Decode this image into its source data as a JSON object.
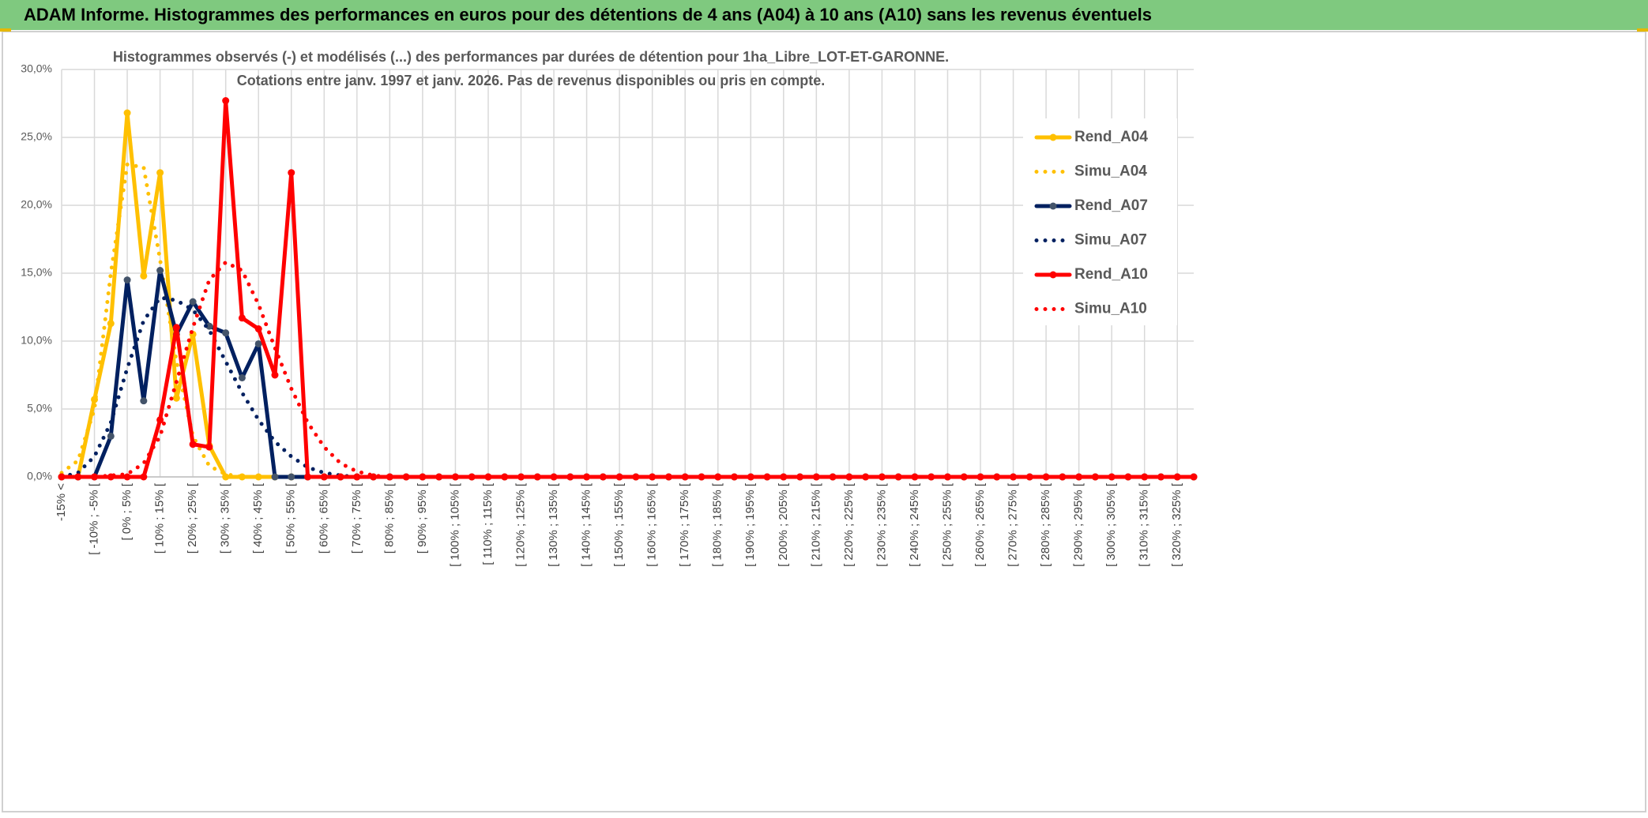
{
  "header": {
    "title": "ADAM Informe. Histogrammes des performances en euros pour des détentions de 4 ans (A04) à 10 ans (A10) sans les revenus éventuels"
  },
  "chart_data": {
    "type": "line",
    "title": [
      "Histogrammes observés (-) et modélisés (...) des performances par durées de détention pour 1ha_Libre_LOT-ET-GARONNE.",
      "Cotations entre janv. 1997 et janv. 2026. Pas de revenus disponibles ou pris en compte."
    ],
    "categories": [
      "-15% <",
      null,
      "[ -10% ; -5% [",
      null,
      "[ 0% ; 5% [",
      null,
      "[ 10% ; 15% [",
      null,
      "[ 20% ; 25% [",
      null,
      "[ 30% ; 35% [",
      null,
      "[ 40% ; 45% [",
      null,
      "[ 50% ; 55% [",
      null,
      "[ 60% ; 65% [",
      null,
      "[ 70% ; 75% [",
      null,
      "[ 80% ; 85% [",
      null,
      "[ 90% ; 95% [",
      null,
      "[ 100% ; 105% [",
      null,
      "[ 110% ; 115% [",
      null,
      "[ 120% ; 125% [",
      null,
      "[ 130% ; 135% [",
      null,
      "[ 140% ; 145% [",
      null,
      "[ 150% ; 155% [",
      null,
      "[ 160% ; 165% [",
      null,
      "[ 170% ; 175% [",
      null,
      "[ 180% ; 185% [",
      null,
      "[ 190% ; 195% [",
      null,
      "[ 200% ; 205% [",
      null,
      "[ 210% ; 215% [",
      null,
      "[ 220% ; 225% [",
      null,
      "[ 230% ; 235% [",
      null,
      "[ 240% ; 245% [",
      null,
      "[ 250% ; 255% [",
      null,
      "[ 260% ; 265% [",
      null,
      "[ 270% ; 275% [",
      null,
      "[ 280% ; 285% [",
      null,
      "[ 290% ; 295% [",
      null,
      "[ 300% ; 305% [",
      null,
      "[ 310% ; 315% [",
      null,
      "[ 320% ; 325% [",
      null
    ],
    "series": [
      {
        "name": "Rend_A04",
        "color": "#ffc000",
        "style": "solid",
        "marker": true,
        "values": [
          0,
          0,
          5.7,
          11.3,
          26.8,
          14.8,
          22.4,
          5.8,
          10.5,
          2.3,
          0,
          0,
          0,
          0,
          0,
          0,
          0,
          0,
          0,
          0,
          0,
          0,
          0,
          0,
          0,
          0,
          0,
          0,
          0,
          0,
          0,
          0,
          0,
          0,
          0,
          0,
          0,
          0,
          0,
          0,
          0,
          0,
          0,
          0,
          0,
          0,
          0,
          0,
          0,
          0,
          0,
          0,
          0,
          0,
          0,
          0,
          0,
          0,
          0,
          0,
          0,
          0,
          0,
          0,
          0,
          0,
          0,
          0,
          0,
          0
        ]
      },
      {
        "name": "Simu_A04",
        "color": "#ffc000",
        "style": "dotted",
        "marker": false,
        "values": [
          0.3,
          1.2,
          5,
          15,
          23,
          22.8,
          16,
          8.5,
          3,
          0.8,
          0.2,
          0,
          0,
          0,
          0,
          0,
          0,
          0,
          0,
          0,
          0,
          0,
          0,
          0,
          0,
          0,
          0,
          0,
          0,
          0,
          0,
          0,
          0,
          0,
          0,
          0,
          0,
          0,
          0,
          0,
          0,
          0,
          0,
          0,
          0,
          0,
          0,
          0,
          0,
          0,
          0,
          0,
          0,
          0,
          0,
          0,
          0,
          0,
          0,
          0,
          0,
          0,
          0,
          0,
          0,
          0,
          0,
          0,
          0,
          0
        ]
      },
      {
        "name": "Rend_A07",
        "color": "#002060",
        "style": "solid",
        "marker": true,
        "values": [
          0,
          0,
          0,
          3,
          14.5,
          5.6,
          15.2,
          10.5,
          12.9,
          11.1,
          10.6,
          7.3,
          9.8,
          0,
          0,
          0,
          0,
          0,
          0,
          0,
          0,
          0,
          0,
          0,
          0,
          0,
          0,
          0,
          0,
          0,
          0,
          0,
          0,
          0,
          0,
          0,
          0,
          0,
          0,
          0,
          0,
          0,
          0,
          0,
          0,
          0,
          0,
          0,
          0,
          0,
          0,
          0,
          0,
          0,
          0,
          0,
          0,
          0,
          0,
          0,
          0,
          0,
          0,
          0,
          0,
          0,
          0,
          0,
          0,
          0
        ]
      },
      {
        "name": "Simu_A07",
        "color": "#002060",
        "style": "dotted",
        "marker": false,
        "values": [
          0,
          0.3,
          1.5,
          4,
          8,
          11.5,
          13.2,
          13,
          12.3,
          10.8,
          8.5,
          6.2,
          4.2,
          2.6,
          1.5,
          0.7,
          0.3,
          0.1,
          0,
          0,
          0,
          0,
          0,
          0,
          0,
          0,
          0,
          0,
          0,
          0,
          0,
          0,
          0,
          0,
          0,
          0,
          0,
          0,
          0,
          0,
          0,
          0,
          0,
          0,
          0,
          0,
          0,
          0,
          0,
          0,
          0,
          0,
          0,
          0,
          0,
          0,
          0,
          0,
          0,
          0,
          0,
          0,
          0,
          0,
          0,
          0,
          0,
          0,
          0,
          0
        ]
      },
      {
        "name": "Rend_A10",
        "color": "#ff0000",
        "style": "solid",
        "marker": true,
        "values": [
          0,
          0,
          0,
          0,
          0,
          0,
          4.2,
          11,
          2.4,
          2.2,
          27.7,
          11.7,
          10.9,
          7.5,
          22.4,
          0,
          0,
          0,
          0,
          0,
          0,
          0,
          0,
          0,
          0,
          0,
          0,
          0,
          0,
          0,
          0,
          0,
          0,
          0,
          0,
          0,
          0,
          0,
          0,
          0,
          0,
          0,
          0,
          0,
          0,
          0,
          0,
          0,
          0,
          0,
          0,
          0,
          0,
          0,
          0,
          0,
          0,
          0,
          0,
          0,
          0,
          0,
          0,
          0,
          0,
          0,
          0,
          0,
          0,
          0
        ]
      },
      {
        "name": "Simu_A10",
        "color": "#ff0000",
        "style": "dotted",
        "marker": false,
        "values": [
          0,
          0,
          0,
          0.1,
          0.2,
          1,
          3,
          7,
          11,
          14.5,
          15.8,
          15.2,
          12.7,
          9.5,
          6.5,
          4,
          2.2,
          1,
          0.4,
          0.1,
          0,
          0,
          0,
          0,
          0,
          0,
          0,
          0,
          0,
          0,
          0,
          0,
          0,
          0,
          0,
          0,
          0,
          0,
          0,
          0,
          0,
          0,
          0,
          0,
          0,
          0,
          0,
          0,
          0,
          0,
          0,
          0,
          0,
          0,
          0,
          0,
          0,
          0,
          0,
          0,
          0,
          0,
          0,
          0,
          0,
          0,
          0,
          0,
          0,
          0
        ]
      }
    ],
    "ylim": [
      0,
      30
    ],
    "yticks": [
      {
        "value": 0,
        "label": "0,0%"
      },
      {
        "value": 5,
        "label": "5,0%"
      },
      {
        "value": 10,
        "label": "10,0%"
      },
      {
        "value": 15,
        "label": "15,0%"
      },
      {
        "value": 20,
        "label": "20,0%"
      },
      {
        "value": 25,
        "label": "25,0%"
      },
      {
        "value": 30,
        "label": "30,0%"
      }
    ],
    "grid": true,
    "legend": "right"
  }
}
